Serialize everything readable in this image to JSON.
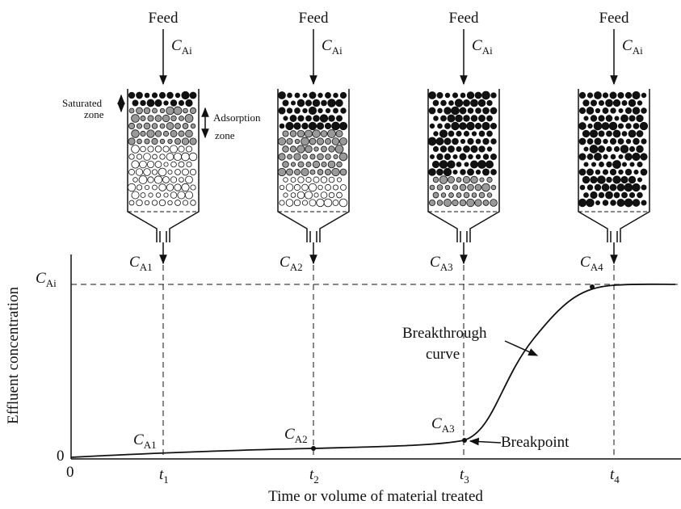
{
  "columns": [
    {
      "feed": "Feed",
      "inlet": {
        "symbol": "C",
        "subscript": "Ai"
      },
      "outlet": {
        "symbol": "C",
        "subscript": "A1"
      }
    },
    {
      "feed": "Feed",
      "inlet": {
        "symbol": "C",
        "subscript": "Ai"
      },
      "outlet": {
        "symbol": "C",
        "subscript": "A2"
      }
    },
    {
      "feed": "Feed",
      "inlet": {
        "symbol": "C",
        "subscript": "Ai"
      },
      "outlet": {
        "symbol": "C",
        "subscript": "A3"
      }
    },
    {
      "feed": "Feed",
      "inlet": {
        "symbol": "C",
        "subscript": "Ai"
      },
      "outlet": {
        "symbol": "C",
        "subscript": "A4"
      }
    }
  ],
  "zones": {
    "saturated": [
      "Saturated",
      "zone"
    ],
    "adsorption": [
      "Adsorption",
      "zone"
    ]
  },
  "plot": {
    "y_label": "Effluent concentration",
    "x_label": "Time or volume of material treated",
    "origin_y": "0",
    "origin_x": "0",
    "y_level": {
      "symbol": "C",
      "subscript": "Ai"
    },
    "x_ticks": [
      {
        "symbol": "t",
        "subscript": "1"
      },
      {
        "symbol": "t",
        "subscript": "2"
      },
      {
        "symbol": "t",
        "subscript": "3"
      },
      {
        "symbol": "t",
        "subscript": "4"
      }
    ],
    "curve_labels": [
      {
        "symbol": "C",
        "subscript": "A1"
      },
      {
        "symbol": "C",
        "subscript": "A2"
      },
      {
        "symbol": "C",
        "subscript": "A3"
      }
    ],
    "breakthrough": [
      "Breakthrough",
      "curve"
    ],
    "breakpoint": "Breakpoint"
  }
}
